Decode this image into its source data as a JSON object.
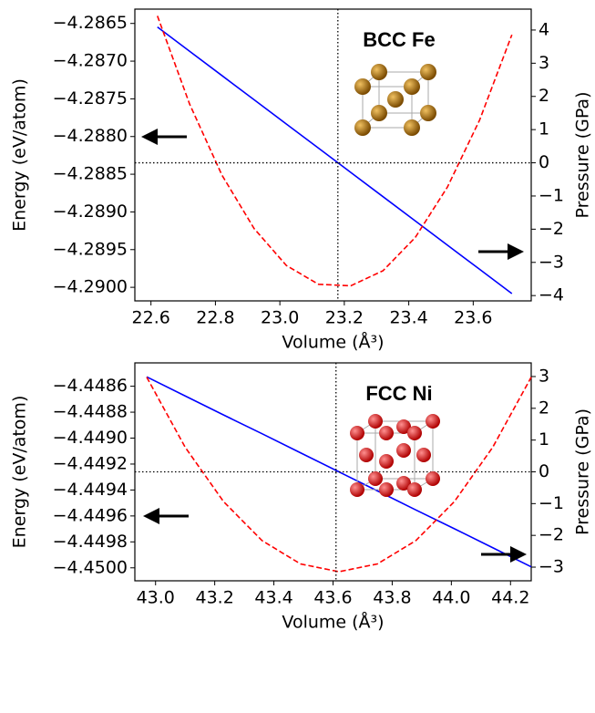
{
  "chart_data": [
    {
      "type": "line",
      "annotation": "BCC Fe",
      "xlabel": "Volume (Å³)",
      "ylabel": "Energy (eV/atom)",
      "y2label": "Pressure (GPa)",
      "x": [
        22.62,
        22.72,
        22.82,
        22.92,
        23.02,
        23.12,
        23.22,
        23.32,
        23.42,
        23.52,
        23.62,
        23.72
      ],
      "series": [
        {
          "name": "Energy",
          "color": "#ff0000",
          "linestyle": "dashed",
          "axis": "y",
          "values": [
            -4.2864,
            -4.28757,
            -4.28851,
            -4.28922,
            -4.28971,
            -4.28996,
            -4.28998,
            -4.28978,
            -4.28934,
            -4.28867,
            -4.28778,
            -4.28665
          ]
        },
        {
          "name": "Pressure",
          "color": "#0000ff",
          "linestyle": "solid",
          "axis": "y2",
          "values": [
            4.09,
            3.36,
            2.63,
            1.9,
            1.17,
            0.44,
            -0.29,
            -1.02,
            -1.75,
            -2.48,
            -3.21,
            -3.94
          ]
        }
      ],
      "vline_x": 23.18,
      "hline_y2": 0,
      "xlim": [
        22.55,
        23.78
      ],
      "xticks": [
        22.6,
        22.8,
        {
          "value": 23,
          "label": "23.0"
        },
        23.2,
        23.4,
        23.6
      ],
      "ylim": [
        -4.29018,
        -4.28631
      ],
      "yticks": [
        {
          "value": -4.2865,
          "label": "−4.2865"
        },
        {
          "value": -4.287,
          "label": "−4.2870"
        },
        {
          "value": -4.2875,
          "label": "−4.2875"
        },
        {
          "value": -4.288,
          "label": "−4.2880"
        },
        {
          "value": -4.2885,
          "label": "−4.2885"
        },
        {
          "value": -4.289,
          "label": "−4.2890"
        },
        {
          "value": -4.2895,
          "label": "−4.2895"
        },
        {
          "value": -4.29,
          "label": "−4.2900"
        }
      ],
      "y2lim": [
        -4.16,
        4.63
      ],
      "y2ticks": [
        4,
        3,
        2,
        1,
        0,
        {
          "value": -1,
          "label": "−1"
        },
        {
          "value": -2,
          "label": "−2"
        },
        {
          "value": -3,
          "label": "−3"
        },
        {
          "value": -4,
          "label": "−4"
        }
      ]
    },
    {
      "type": "line",
      "annotation": "FCC Ni",
      "xlabel": "Volume (Å³)",
      "ylabel": "Energy (eV/atom)",
      "y2label": "Pressure (GPa)",
      "x": [
        42.97,
        43.1,
        43.23,
        43.36,
        43.49,
        43.62,
        43.75,
        43.88,
        44.01,
        44.14,
        44.27
      ],
      "series": [
        {
          "name": "Energy",
          "color": "#ff0000",
          "linestyle": "dashed",
          "axis": "y",
          "values": [
            -4.44853,
            -4.44907,
            -4.44949,
            -4.44979,
            -4.44997,
            -4.45003,
            -4.44997,
            -4.44979,
            -4.44949,
            -4.44907,
            -4.44853
          ]
        },
        {
          "name": "Pressure",
          "color": "#0000ff",
          "linestyle": "solid",
          "axis": "y2",
          "values": [
            2.99,
            2.39,
            1.79,
            1.2,
            0.6,
            0,
            -0.6,
            -1.2,
            -1.79,
            -2.39,
            -2.99
          ]
        }
      ],
      "vline_x": 43.61,
      "hline_y2": 0,
      "xlim": [
        42.93,
        44.27
      ],
      "xticks": [
        {
          "value": 43,
          "label": "43.0"
        },
        43.2,
        43.4,
        43.6,
        43.8,
        {
          "value": 44,
          "label": "44.0"
        },
        44.2
      ],
      "ylim": [
        -4.4501,
        -4.44842
      ],
      "yticks": [
        {
          "value": -4.4486,
          "label": "−4.4486"
        },
        {
          "value": -4.4488,
          "label": "−4.4488"
        },
        {
          "value": -4.449,
          "label": "−4.4490"
        },
        {
          "value": -4.4492,
          "label": "−4.4492"
        },
        {
          "value": -4.4494,
          "label": "−4.4494"
        },
        {
          "value": -4.4496,
          "label": "−4.4496"
        },
        {
          "value": -4.4498,
          "label": "−4.4498"
        },
        {
          "value": -4.45,
          "label": "−4.4500"
        }
      ],
      "y2lim": [
        -3.43,
        3.43
      ],
      "y2ticks": [
        3,
        2,
        1,
        0,
        {
          "value": -1,
          "label": "−1"
        },
        {
          "value": -2,
          "label": "−2"
        },
        {
          "value": -3,
          "label": "−3"
        }
      ]
    }
  ]
}
